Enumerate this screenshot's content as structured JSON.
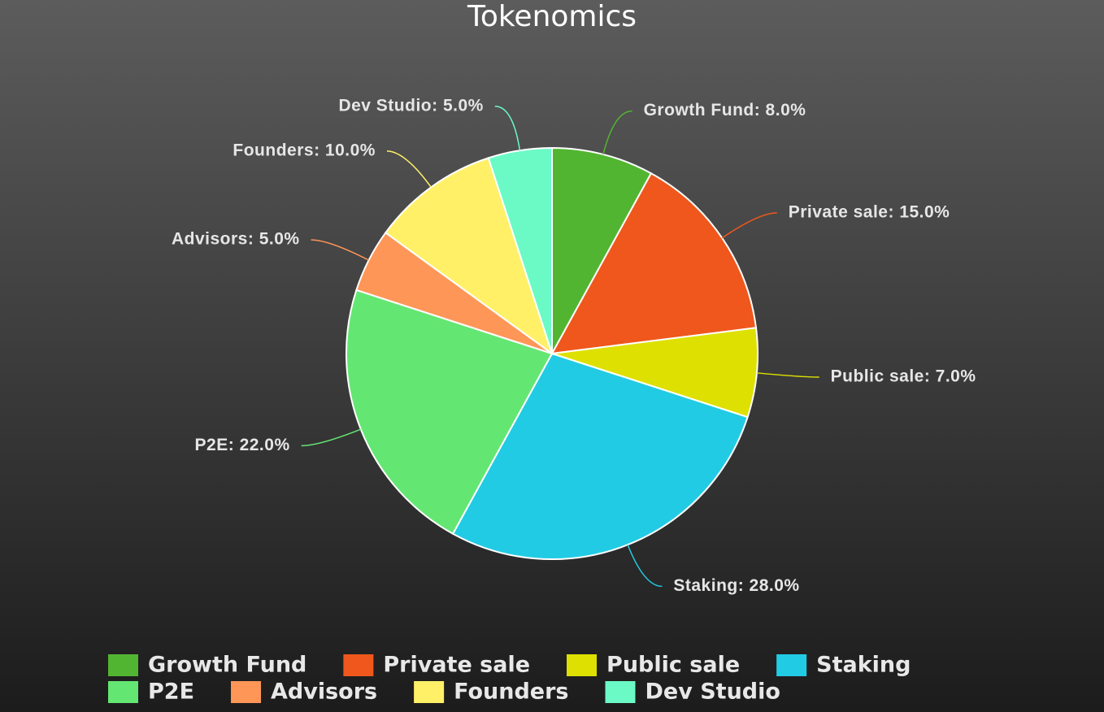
{
  "chart_data": {
    "type": "pie",
    "title": "Tokenomics",
    "categories": [
      "Growth Fund",
      "Private sale",
      "Public sale",
      "Staking",
      "P2E",
      "Advisors",
      "Founders",
      "Dev Studio"
    ],
    "values": [
      8,
      15,
      7,
      28,
      22,
      5,
      10,
      5
    ],
    "value_labels": [
      "Growth Fund: 8.0%",
      "Private sale: 15.0%",
      "Public sale: 7.0%",
      "Staking: 28.0%",
      "P2E: 22.0%",
      "Advisors: 5.0%",
      "Founders: 10.0%",
      "Dev Studio: 5.0%"
    ],
    "colors": [
      "#52b531",
      "#ef571c",
      "#dde000",
      "#22cbe4",
      "#64e673",
      "#fe9658",
      "#fff068",
      "#6bfac6"
    ],
    "legend": "bottom"
  }
}
